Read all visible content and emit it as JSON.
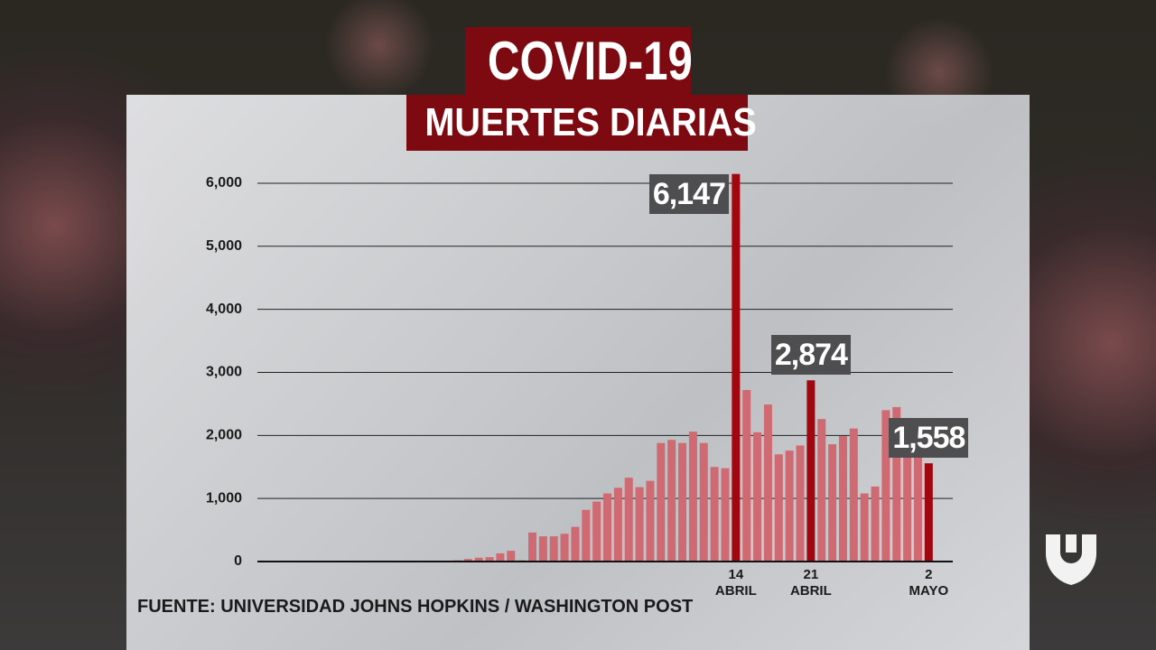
{
  "chart_data": {
    "type": "bar",
    "title": "COVID-19",
    "subtitle": "MUERTES DIARIAS",
    "source": "FUENTE: UNIVERSIDAD JOHNS HOPKINS / WASHINGTON POST",
    "categories": [
      null,
      null,
      null,
      null,
      null,
      null,
      null,
      null,
      null,
      null,
      null,
      null,
      null,
      null,
      null,
      null,
      null,
      null,
      null,
      null,
      null,
      null,
      null,
      null,
      null,
      null,
      null,
      null,
      null,
      null,
      null,
      null,
      null,
      null,
      null,
      null,
      null,
      null,
      null,
      null,
      null,
      null,
      null,
      null,
      "14\nABRIL",
      null,
      null,
      null,
      null,
      null,
      null,
      "21\nABRIL",
      null,
      null,
      null,
      null,
      null,
      null,
      null,
      null,
      null,
      null,
      "2\nMAYO"
    ],
    "values": [
      0,
      0,
      0,
      0,
      0,
      0,
      0,
      0,
      0,
      0,
      0,
      0,
      0,
      0,
      0,
      0,
      0,
      5,
      20,
      40,
      60,
      70,
      130,
      170,
      20,
      460,
      400,
      400,
      440,
      550,
      820,
      950,
      1080,
      1170,
      1330,
      1180,
      1280,
      1880,
      1930,
      1880,
      2060,
      1880,
      1500,
      1480,
      6147,
      2720,
      2050,
      2490,
      1700,
      1760,
      1840,
      2874,
      2260,
      1860,
      1990,
      2110,
      1080,
      1190,
      2400,
      2450,
      2090,
      1720,
      1558
    ],
    "value_labels": [
      null,
      null,
      null,
      null,
      null,
      null,
      null,
      null,
      null,
      null,
      null,
      null,
      null,
      null,
      null,
      null,
      null,
      null,
      null,
      null,
      null,
      null,
      null,
      null,
      null,
      null,
      null,
      null,
      null,
      null,
      null,
      null,
      null,
      null,
      null,
      null,
      null,
      null,
      null,
      null,
      null,
      null,
      null,
      null,
      "6,147",
      null,
      null,
      null,
      null,
      null,
      null,
      "2,874",
      null,
      null,
      null,
      null,
      null,
      null,
      null,
      null,
      null,
      null,
      "1,558"
    ],
    "color": "#cf6a72",
    "highlight_color": "#a0070f",
    "ylim": [
      0,
      6300
    ],
    "yticks": [
      0,
      {
        "value": 1000,
        "label": "1,000"
      },
      {
        "value": 2000,
        "label": "2,000"
      },
      {
        "value": 3000,
        "label": "3,000"
      },
      {
        "value": 4000,
        "label": "4,000"
      },
      {
        "value": 5000,
        "label": "5,000"
      },
      {
        "value": 6000,
        "label": "6,000"
      }
    ],
    "grid": true
  }
}
